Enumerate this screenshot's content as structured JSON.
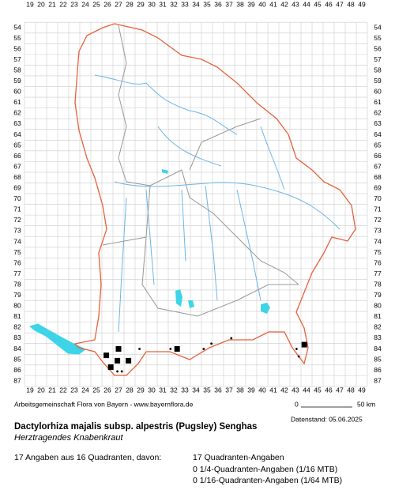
{
  "columns": [
    19,
    20,
    21,
    22,
    23,
    24,
    25,
    26,
    27,
    28,
    29,
    30,
    31,
    32,
    33,
    34,
    35,
    36,
    37,
    38,
    39,
    40,
    41,
    42,
    43,
    44,
    45,
    46,
    47,
    48,
    49
  ],
  "rows": [
    54,
    55,
    56,
    57,
    58,
    59,
    60,
    61,
    62,
    63,
    64,
    65,
    66,
    67,
    68,
    69,
    70,
    71,
    72,
    73,
    74,
    75,
    76,
    77,
    78,
    79,
    80,
    81,
    82,
    83,
    84,
    85,
    86,
    87
  ],
  "quadrant_records": [
    {
      "x": 27,
      "y": 84
    },
    {
      "x": 25.9,
      "y": 84.6
    },
    {
      "x": 26.9,
      "y": 85.1
    },
    {
      "x": 27.9,
      "y": 85.1
    },
    {
      "x": 26.3,
      "y": 85.7
    },
    {
      "x": 32.3,
      "y": 84
    },
    {
      "x": 43.8,
      "y": 83.6
    }
  ],
  "point_records": [
    {
      "x": 28.9,
      "y": 84
    },
    {
      "x": 31.7,
      "y": 84
    },
    {
      "x": 26.9,
      "y": 86.1
    },
    {
      "x": 27.3,
      "y": 86.1
    },
    {
      "x": 34.7,
      "y": 84
    },
    {
      "x": 35.4,
      "y": 83.5
    },
    {
      "x": 37.2,
      "y": 83
    },
    {
      "x": 43.1,
      "y": 84
    },
    {
      "x": 43.3,
      "y": 84.7
    }
  ],
  "footer": {
    "credit": "Arbeitsgemeinschaft Flora von Bayern - www.bayernflora.de",
    "scale_start": "0",
    "scale_end": "50 km",
    "date": "Datenstand: 05.06.2025"
  },
  "title": "Dactylorhiza majalis subsp. alpestris (Pugsley) Senghas",
  "subtitle": "Herztragendes Knabenkraut",
  "summary": "17 Angaben aus 16 Quadranten, davon:",
  "counts": [
    "17 Quadranten-Angaben",
    "0 1/4-Quadranten-Angaben (1/16 MTB)",
    "0 1/16-Quadranten-Angaben (1/64 MTB)"
  ]
}
